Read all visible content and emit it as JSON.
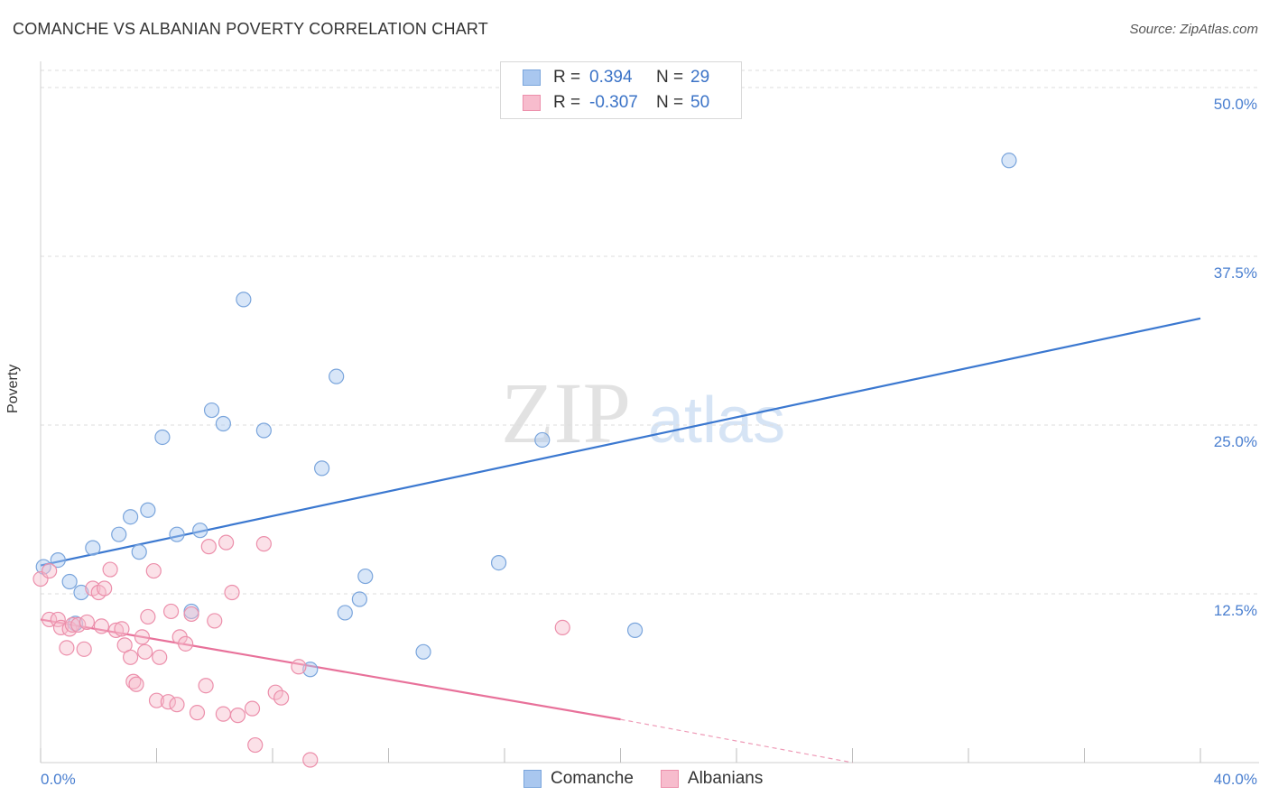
{
  "title": "COMANCHE VS ALBANIAN POVERTY CORRELATION CHART",
  "source": "Source: ZipAtlas.com",
  "watermark": {
    "zip": "ZIP",
    "atlas": "atlas"
  },
  "legend": {
    "rows": [
      {
        "r_label": "R =",
        "r_value": "0.394",
        "n_label": "N =",
        "n_value": "29",
        "color": "#a9c7ef",
        "edge": "#7aa5dc"
      },
      {
        "r_label": "R =",
        "r_value": "-0.307",
        "n_label": "N =",
        "n_value": "50",
        "color": "#f7bccd",
        "edge": "#ec8fab"
      }
    ]
  },
  "bottom_legend": [
    {
      "label": "Comanche",
      "color": "#a9c7ef",
      "edge": "#7aa5dc"
    },
    {
      "label": "Albanians",
      "color": "#f7bccd",
      "edge": "#ec8fab"
    }
  ],
  "chart_data": {
    "type": "scatter",
    "title": "COMANCHE VS ALBANIAN POVERTY CORRELATION CHART",
    "xlabel": "",
    "ylabel": "Poverty",
    "xlim": [
      0,
      40
    ],
    "ylim": [
      0,
      50
    ],
    "x_tick_labels": [
      "0.0%",
      "40.0%"
    ],
    "y_ticks": [
      12.5,
      25.0,
      37.5,
      50.0
    ],
    "y_tick_labels": [
      "12.5%",
      "25.0%",
      "37.5%",
      "50.0%"
    ],
    "grid": true,
    "series": [
      {
        "name": "Comanche",
        "color": "#3b78d0",
        "points": [
          [
            0.1,
            14.5
          ],
          [
            0.6,
            15.0
          ],
          [
            1.0,
            13.4
          ],
          [
            1.4,
            12.6
          ],
          [
            1.8,
            15.9
          ],
          [
            1.2,
            10.3
          ],
          [
            2.7,
            16.9
          ],
          [
            3.1,
            18.2
          ],
          [
            3.4,
            15.6
          ],
          [
            3.7,
            18.7
          ],
          [
            4.2,
            24.1
          ],
          [
            4.7,
            16.9
          ],
          [
            5.2,
            11.2
          ],
          [
            5.5,
            17.2
          ],
          [
            5.9,
            26.1
          ],
          [
            6.3,
            25.1
          ],
          [
            7.0,
            34.3
          ],
          [
            7.7,
            24.6
          ],
          [
            9.3,
            6.9
          ],
          [
            9.7,
            21.8
          ],
          [
            10.2,
            28.6
          ],
          [
            10.5,
            11.1
          ],
          [
            11.0,
            12.1
          ],
          [
            11.2,
            13.8
          ],
          [
            13.2,
            8.2
          ],
          [
            15.8,
            14.8
          ],
          [
            17.3,
            23.9
          ],
          [
            20.5,
            9.8
          ],
          [
            33.4,
            44.6
          ]
        ],
        "trend": {
          "x": [
            0,
            40
          ],
          "y": [
            14.6,
            32.9
          ]
        }
      },
      {
        "name": "Albanians",
        "color": "#e8719a",
        "points": [
          [
            0.0,
            13.6
          ],
          [
            0.3,
            14.2
          ],
          [
            0.3,
            10.6
          ],
          [
            0.6,
            10.6
          ],
          [
            0.7,
            10.0
          ],
          [
            0.9,
            8.5
          ],
          [
            1.0,
            9.9
          ],
          [
            1.1,
            10.2
          ],
          [
            1.3,
            10.2
          ],
          [
            1.5,
            8.4
          ],
          [
            1.6,
            10.4
          ],
          [
            1.8,
            12.9
          ],
          [
            2.0,
            12.6
          ],
          [
            2.1,
            10.1
          ],
          [
            2.2,
            12.9
          ],
          [
            2.4,
            14.3
          ],
          [
            2.6,
            9.8
          ],
          [
            2.8,
            9.9
          ],
          [
            2.9,
            8.7
          ],
          [
            3.1,
            7.8
          ],
          [
            3.2,
            6.0
          ],
          [
            3.3,
            5.8
          ],
          [
            3.5,
            9.3
          ],
          [
            3.6,
            8.2
          ],
          [
            3.7,
            10.8
          ],
          [
            3.9,
            14.2
          ],
          [
            4.0,
            4.6
          ],
          [
            4.1,
            7.8
          ],
          [
            4.4,
            4.5
          ],
          [
            4.5,
            11.2
          ],
          [
            4.7,
            4.3
          ],
          [
            4.8,
            9.3
          ],
          [
            5.0,
            8.8
          ],
          [
            5.2,
            11.0
          ],
          [
            5.4,
            3.7
          ],
          [
            5.7,
            5.7
          ],
          [
            5.8,
            16.0
          ],
          [
            6.0,
            10.5
          ],
          [
            6.3,
            3.6
          ],
          [
            6.4,
            16.3
          ],
          [
            6.6,
            12.6
          ],
          [
            6.8,
            3.5
          ],
          [
            7.3,
            4.0
          ],
          [
            7.4,
            1.3
          ],
          [
            7.7,
            16.2
          ],
          [
            8.1,
            5.2
          ],
          [
            8.3,
            4.8
          ],
          [
            8.9,
            7.1
          ],
          [
            9.3,
            0.2
          ],
          [
            18.0,
            10.0
          ]
        ],
        "trend": {
          "x": [
            0,
            20
          ],
          "y": [
            10.6,
            3.2
          ]
        },
        "trend_extension": {
          "x": [
            20,
            28
          ],
          "y": [
            3.2,
            0.0
          ]
        }
      }
    ]
  }
}
